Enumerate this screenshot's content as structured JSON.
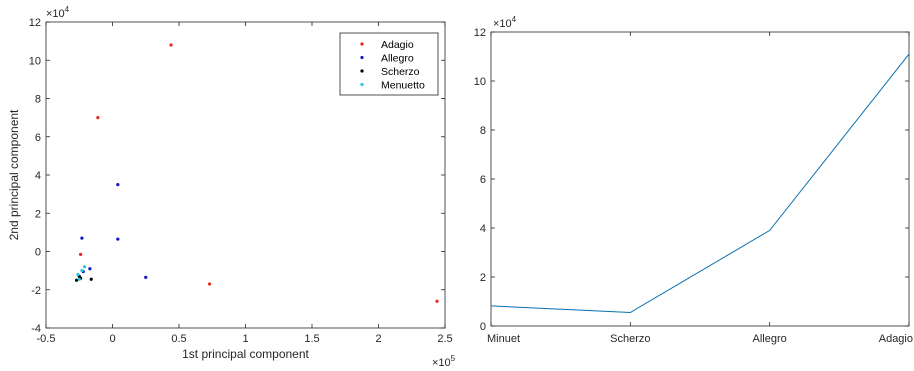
{
  "chart_data": [
    {
      "type": "scatter",
      "xlabel": "1st principal component",
      "ylabel": "2nd principal component",
      "xlim": [
        -0.5,
        2.5
      ],
      "ylim": [
        -4,
        12
      ],
      "xticks": [
        "-0.5",
        "0",
        "0.5",
        "1",
        "1.5",
        "2",
        "2.5"
      ],
      "yticks": [
        "-4",
        "-2",
        "0",
        "2",
        "4",
        "6",
        "8",
        "10",
        "12"
      ],
      "x_exponent": "5",
      "y_exponent": "4",
      "grid": false,
      "legend_position": "top-right",
      "series": [
        {
          "name": "Adagio",
          "color": "#e8281e",
          "points": [
            [
              0.44,
              10.8
            ],
            [
              -0.11,
              7.0
            ],
            [
              0.73,
              -1.7
            ],
            [
              2.44,
              -2.6
            ],
            [
              -0.24,
              -0.15
            ]
          ]
        },
        {
          "name": "Allegro",
          "color": "#1414c8",
          "points": [
            [
              0.04,
              3.5
            ],
            [
              0.04,
              0.65
            ],
            [
              -0.23,
              0.7
            ],
            [
              0.25,
              -1.35
            ],
            [
              -0.17,
              -0.9
            ],
            [
              -0.22,
              -1.05
            ]
          ]
        },
        {
          "name": "Scherzo",
          "color": "#000000",
          "points": [
            [
              -0.16,
              -1.45
            ],
            [
              -0.24,
              -1.4
            ],
            [
              -0.27,
              -1.5
            ],
            [
              -0.25,
              -1.3
            ]
          ]
        },
        {
          "name": "Menuetto",
          "color": "#25c8e0",
          "points": [
            [
              -0.26,
              -1.2
            ],
            [
              -0.23,
              -1.0
            ],
            [
              -0.21,
              -0.8
            ],
            [
              -0.25,
              -1.45
            ]
          ]
        }
      ]
    },
    {
      "type": "line",
      "categories": [
        "Minuet",
        "Scherzo",
        "Allegro",
        "Adagio"
      ],
      "values": [
        0.82,
        0.55,
        3.9,
        11.1
      ],
      "ylim": [
        0,
        12
      ],
      "yticks": [
        "0",
        "2",
        "4",
        "6",
        "8",
        "10",
        "12"
      ],
      "y_exponent": "4",
      "color": "#0a6fb0",
      "grid": false
    }
  ]
}
